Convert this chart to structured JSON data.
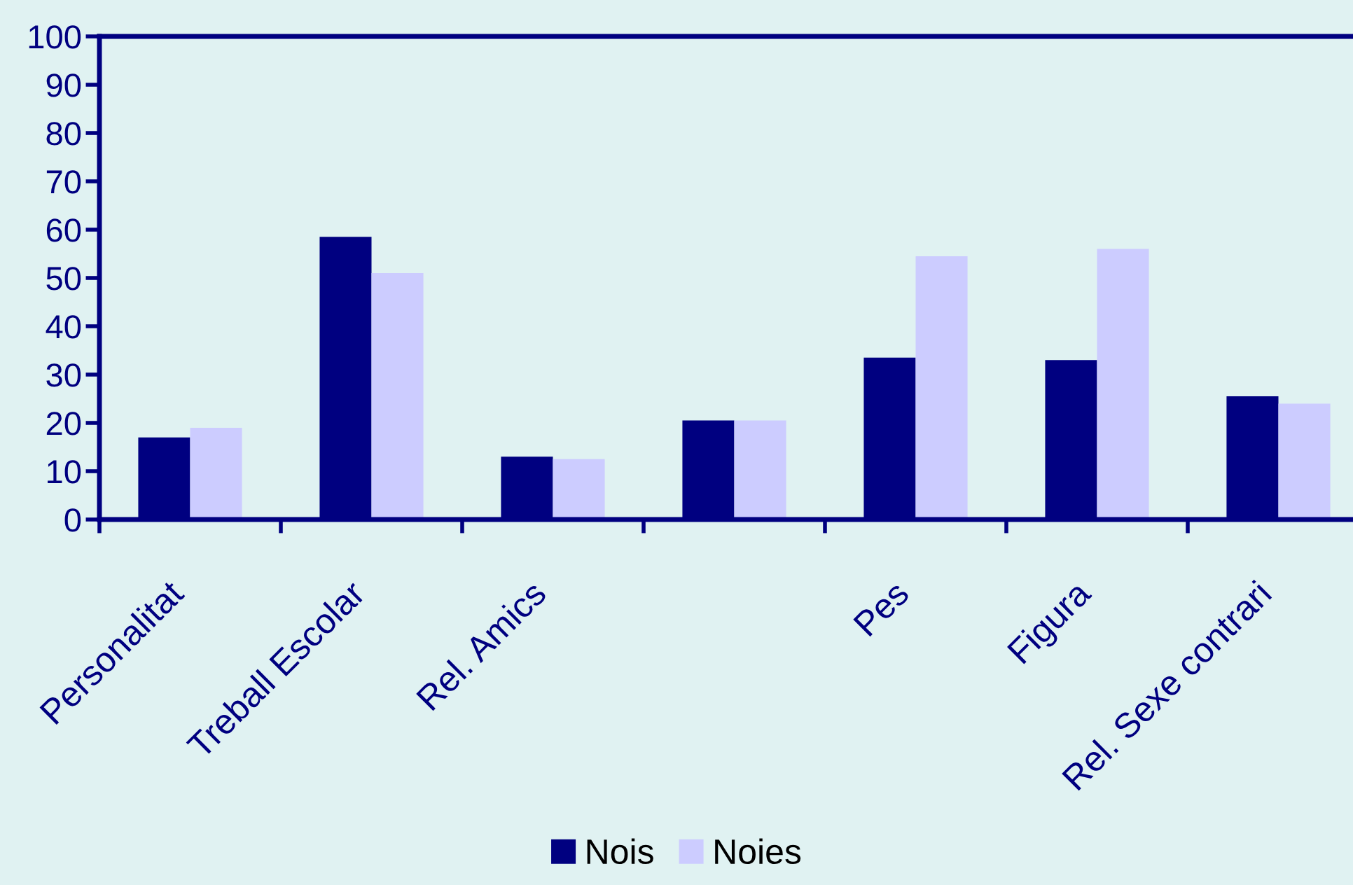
{
  "chart_data": {
    "type": "bar",
    "categories": [
      "Personalitat",
      "Treball Escolar",
      "Rel. Amics",
      null,
      "Pes",
      "Figura",
      "Rel. Sexe contrari"
    ],
    "series": [
      {
        "name": "Nois",
        "color": "#000080",
        "values": [
          17,
          58.5,
          13,
          20.5,
          33.5,
          33,
          25.5
        ]
      },
      {
        "name": "Noies",
        "color": "#ccccff",
        "values": [
          19,
          51,
          12.5,
          20.5,
          54.5,
          56,
          24
        ]
      }
    ],
    "ylim": [
      0,
      100
    ],
    "yticks": [
      0,
      10,
      20,
      30,
      40,
      50,
      60,
      70,
      80,
      90,
      100
    ],
    "legend": "bottom"
  }
}
